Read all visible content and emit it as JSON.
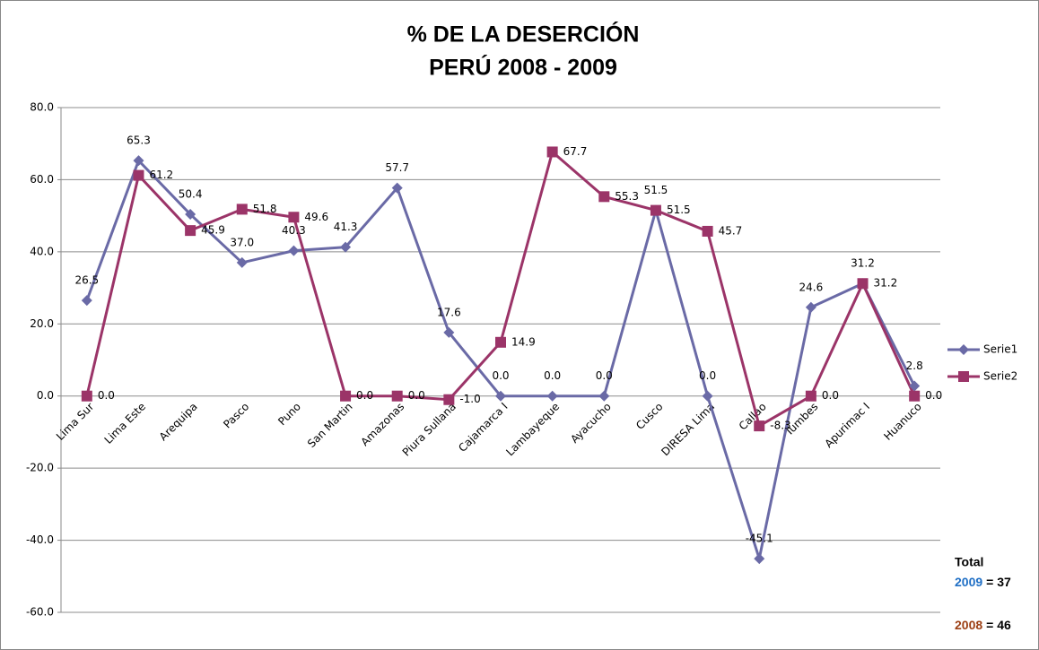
{
  "chart_data": {
    "type": "line",
    "title": "% DE LA DESERCIÓN",
    "subtitle": "PERÚ  2008 - 2009",
    "categories": [
      "Lima Sur",
      "Lima Este",
      "Arequipa",
      "Pasco",
      "Puno",
      "San Martin",
      "Amazonas",
      "Piura Sullana",
      "Cajamarca I",
      "Lambayeque",
      "Ayacucho",
      "Cusco",
      "DIRESA Lima",
      "Callao",
      "Tumbes",
      "Apurimac I",
      "Huanuco"
    ],
    "series": [
      {
        "name": "Serie1",
        "color": "#6a6aa6",
        "marker": "diamond",
        "values": [
          26.5,
          65.3,
          50.4,
          37.0,
          40.3,
          41.3,
          57.7,
          17.6,
          0.0,
          0.0,
          0.0,
          51.5,
          0.0,
          -45.1,
          24.6,
          31.2,
          2.8
        ],
        "value_labels": [
          "26.5",
          "65.3",
          "50.4",
          "37.0",
          "40.3",
          "41.3",
          "57.7",
          "17.6",
          "0.0",
          "0.0",
          "0.0",
          "51.5",
          "0.0",
          "-45.1",
          "24.6",
          "31.2",
          "2.8"
        ]
      },
      {
        "name": "Serie2",
        "color": "#9b3468",
        "marker": "square",
        "values": [
          0.0,
          61.2,
          45.9,
          51.8,
          49.6,
          0.0,
          0.0,
          -1.0,
          14.9,
          67.7,
          55.3,
          51.5,
          45.7,
          -8.3,
          0.0,
          31.2,
          0.0
        ],
        "value_labels": [
          "0.0",
          "61.2",
          "45.9",
          "51.8",
          "49.6",
          "0.0",
          "0.0",
          "-1.0",
          "14.9",
          "67.7",
          "55.3",
          "51.5",
          "45.7",
          "-8.3",
          "0.0",
          "31.2",
          "0.0"
        ]
      }
    ],
    "ylim": [
      -60,
      80
    ],
    "yticks": [
      {
        "value": -60,
        "label": "-60.0"
      },
      {
        "value": -40,
        "label": "-40.0"
      },
      {
        "value": -20,
        "label": "-20.0"
      },
      {
        "value": 0,
        "label": "0.0"
      },
      {
        "value": 20,
        "label": "20.0"
      },
      {
        "value": 40,
        "label": "40.0"
      },
      {
        "value": 60,
        "label": "60.0"
      },
      {
        "value": 80,
        "label": "80.0"
      }
    ],
    "grid": true,
    "legend": "right",
    "annotation": {
      "heading": "Total",
      "rows": [
        {
          "year": "2009",
          "text": "= 37",
          "color": "#1f6fc5"
        },
        {
          "year": "2008",
          "text": "= 46",
          "color": "#9c3f14"
        }
      ],
      "heading_color": "#1f6fc5"
    }
  }
}
